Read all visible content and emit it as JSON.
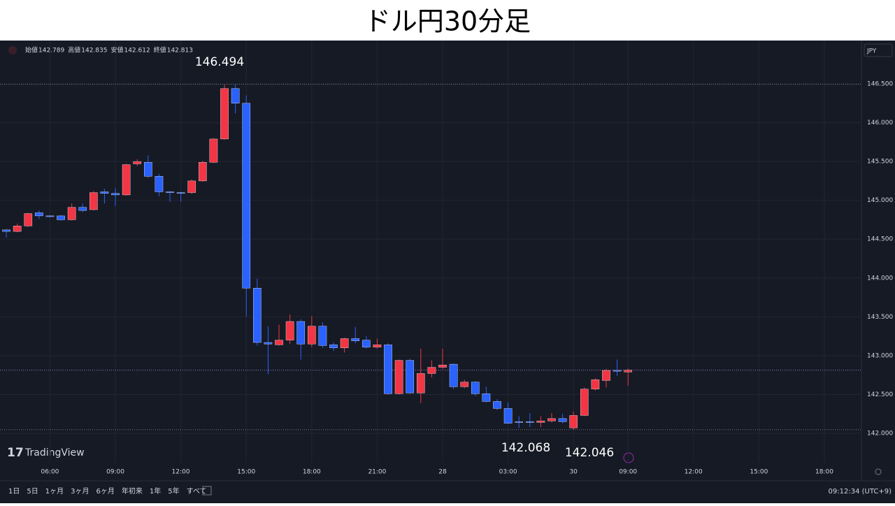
{
  "chart_data": {
    "type": "candlestick",
    "title": "ドル円30分足",
    "ohlc_header": [
      {
        "label": "始値",
        "value": "142.789"
      },
      {
        "label": "高値",
        "value": "142.835"
      },
      {
        "label": "安値",
        "value": "142.612"
      },
      {
        "label": "終値",
        "value": "142.813"
      }
    ],
    "currency": "JPY",
    "logo": "TradingView",
    "up_color": "#f23645",
    "down_color": "#2962ff",
    "open": [
      144.62,
      144.6,
      144.67,
      144.84,
      144.8,
      144.8,
      144.75,
      144.91,
      144.88,
      145.11,
      145.09,
      145.07,
      145.47,
      145.49,
      145.31,
      145.11,
      145.1,
      145.1,
      145.25,
      145.49,
      145.79,
      146.44,
      146.25,
      143.87,
      143.17,
      143.14,
      143.2,
      143.44,
      143.15,
      143.38,
      143.14,
      143.1,
      143.22,
      143.2,
      143.11,
      143.14,
      142.51,
      142.94,
      142.52,
      142.77,
      142.85,
      142.89,
      142.6,
      142.66,
      142.51,
      142.41,
      142.32,
      142.15,
      142.15,
      142.14,
      142.16,
      142.19,
      142.07,
      142.23,
      142.57,
      142.68,
      142.81,
      142.789
    ],
    "high": [
      144.63,
      144.7,
      144.84,
      144.87,
      144.81,
      144.81,
      144.96,
      144.96,
      145.12,
      145.15,
      145.16,
      145.47,
      145.53,
      145.58,
      145.34,
      145.12,
      145.11,
      145.27,
      145.51,
      145.8,
      146.49,
      146.494,
      146.35,
      143.99,
      143.38,
      143.4,
      143.53,
      143.47,
      143.51,
      143.43,
      143.17,
      143.23,
      143.37,
      143.25,
      143.22,
      143.16,
      142.95,
      142.96,
      143.09,
      142.94,
      143.09,
      142.9,
      142.69,
      142.67,
      142.6,
      142.44,
      142.4,
      142.22,
      142.26,
      142.22,
      142.26,
      142.25,
      142.28,
      142.59,
      142.71,
      142.83,
      142.95,
      142.835
    ],
    "low": [
      144.52,
      144.59,
      144.66,
      144.76,
      144.78,
      144.74,
      144.74,
      144.85,
      144.87,
      144.96,
      144.93,
      145.06,
      145.44,
      145.29,
      145.05,
      144.98,
      144.98,
      145.08,
      145.24,
      145.48,
      145.78,
      146.12,
      143.5,
      143.13,
      142.76,
      143.13,
      143.15,
      142.95,
      143.11,
      143.1,
      143.06,
      143.04,
      143.16,
      143.09,
      143.09,
      142.5,
      142.5,
      142.51,
      142.39,
      142.72,
      142.83,
      142.57,
      142.58,
      142.48,
      142.4,
      142.3,
      142.12,
      142.068,
      142.08,
      142.08,
      142.14,
      142.13,
      142.046,
      142.22,
      142.55,
      142.59,
      142.74,
      142.612
    ],
    "close": [
      144.6,
      144.67,
      144.83,
      144.8,
      144.79,
      144.75,
      144.91,
      144.87,
      145.1,
      145.09,
      145.07,
      145.46,
      145.5,
      145.31,
      145.11,
      145.1,
      145.09,
      145.25,
      145.49,
      145.79,
      146.44,
      146.25,
      143.87,
      143.17,
      143.15,
      143.2,
      143.44,
      143.15,
      143.38,
      143.13,
      143.1,
      143.22,
      143.19,
      143.11,
      143.14,
      142.51,
      142.94,
      142.52,
      142.77,
      142.85,
      142.88,
      142.6,
      142.66,
      142.51,
      142.41,
      142.32,
      142.13,
      142.14,
      142.14,
      142.16,
      142.19,
      142.15,
      142.23,
      142.57,
      142.69,
      142.81,
      142.8,
      142.813
    ],
    "annotations": [
      146.494,
      142.068,
      142.046
    ],
    "ylim": [
      141.406,
      147.058
    ],
    "yticks": [
      {
        "value": 142,
        "label": "142.000"
      },
      {
        "value": 142.5,
        "label": "142.500"
      },
      {
        "value": 143,
        "label": "143.000"
      },
      {
        "value": 143.5,
        "label": "143.500"
      },
      {
        "value": 144,
        "label": "144.000"
      },
      {
        "value": 144.5,
        "label": "144.500"
      },
      {
        "value": 145,
        "label": "145.000"
      },
      {
        "value": 145.5,
        "label": "145.500"
      },
      {
        "value": 146,
        "label": "146.000"
      },
      {
        "value": 146.5,
        "label": "146.500"
      }
    ],
    "xlim": [
      -0.58,
      78.4
    ],
    "xticks": [
      {
        "value": 4,
        "label": "06:00"
      },
      {
        "value": 10,
        "label": "09:00"
      },
      {
        "value": 16,
        "label": "12:00"
      },
      {
        "value": 22,
        "label": "15:00"
      },
      {
        "value": 28,
        "label": "18:00"
      },
      {
        "value": 34,
        "label": "21:00"
      },
      {
        "value": 40,
        "label": "28"
      },
      {
        "value": 46,
        "label": "03:00"
      },
      {
        "value": 52,
        "label": "30"
      },
      {
        "value": 57,
        "label": "09:00"
      },
      {
        "value": 63,
        "label": "12:00"
      },
      {
        "value": 69,
        "label": "15:00"
      },
      {
        "value": 75,
        "label": "18:00"
      }
    ],
    "grid": true,
    "ranges": [
      "1日",
      "5日",
      "1ヶ月",
      "3ヶ月",
      "6ヶ月",
      "年初来",
      "1年",
      "5年",
      "すべて"
    ],
    "clock": "09:12:34 (UTC+9)"
  }
}
